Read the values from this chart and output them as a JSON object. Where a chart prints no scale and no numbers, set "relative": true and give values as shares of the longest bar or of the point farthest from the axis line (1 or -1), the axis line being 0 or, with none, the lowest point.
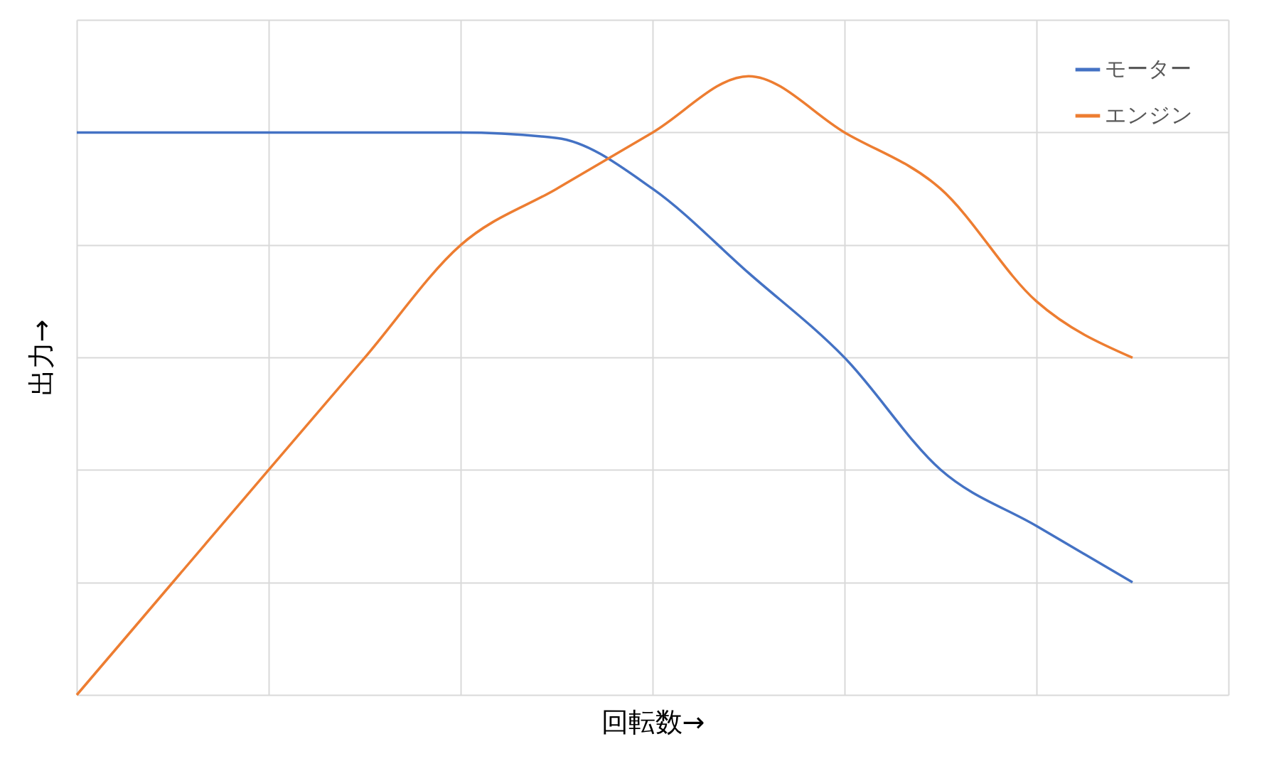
{
  "chart_data": {
    "type": "line",
    "relative": true,
    "xlabel": "回転数→",
    "ylabel": "出力→",
    "categories": [
      null,
      null,
      null,
      null,
      null,
      null,
      null,
      null,
      null,
      null,
      null,
      null
    ],
    "series": [
      {
        "name": "モーター",
        "color": "#4472c4",
        "values": [
          0.909,
          0.909,
          0.909,
          0.909,
          0.909,
          0.9,
          0.818,
          0.682,
          0.545,
          0.364,
          0.273,
          0.182
        ]
      },
      {
        "name": "エンジン",
        "color": "#ed7d31",
        "values": [
          0,
          0.182,
          0.364,
          0.545,
          0.727,
          0.818,
          0.909,
          1,
          0.909,
          0.818,
          0.636,
          0.545
        ]
      }
    ],
    "grid": true,
    "legend": "top right",
    "marker": "none",
    "line_style": "solid"
  }
}
